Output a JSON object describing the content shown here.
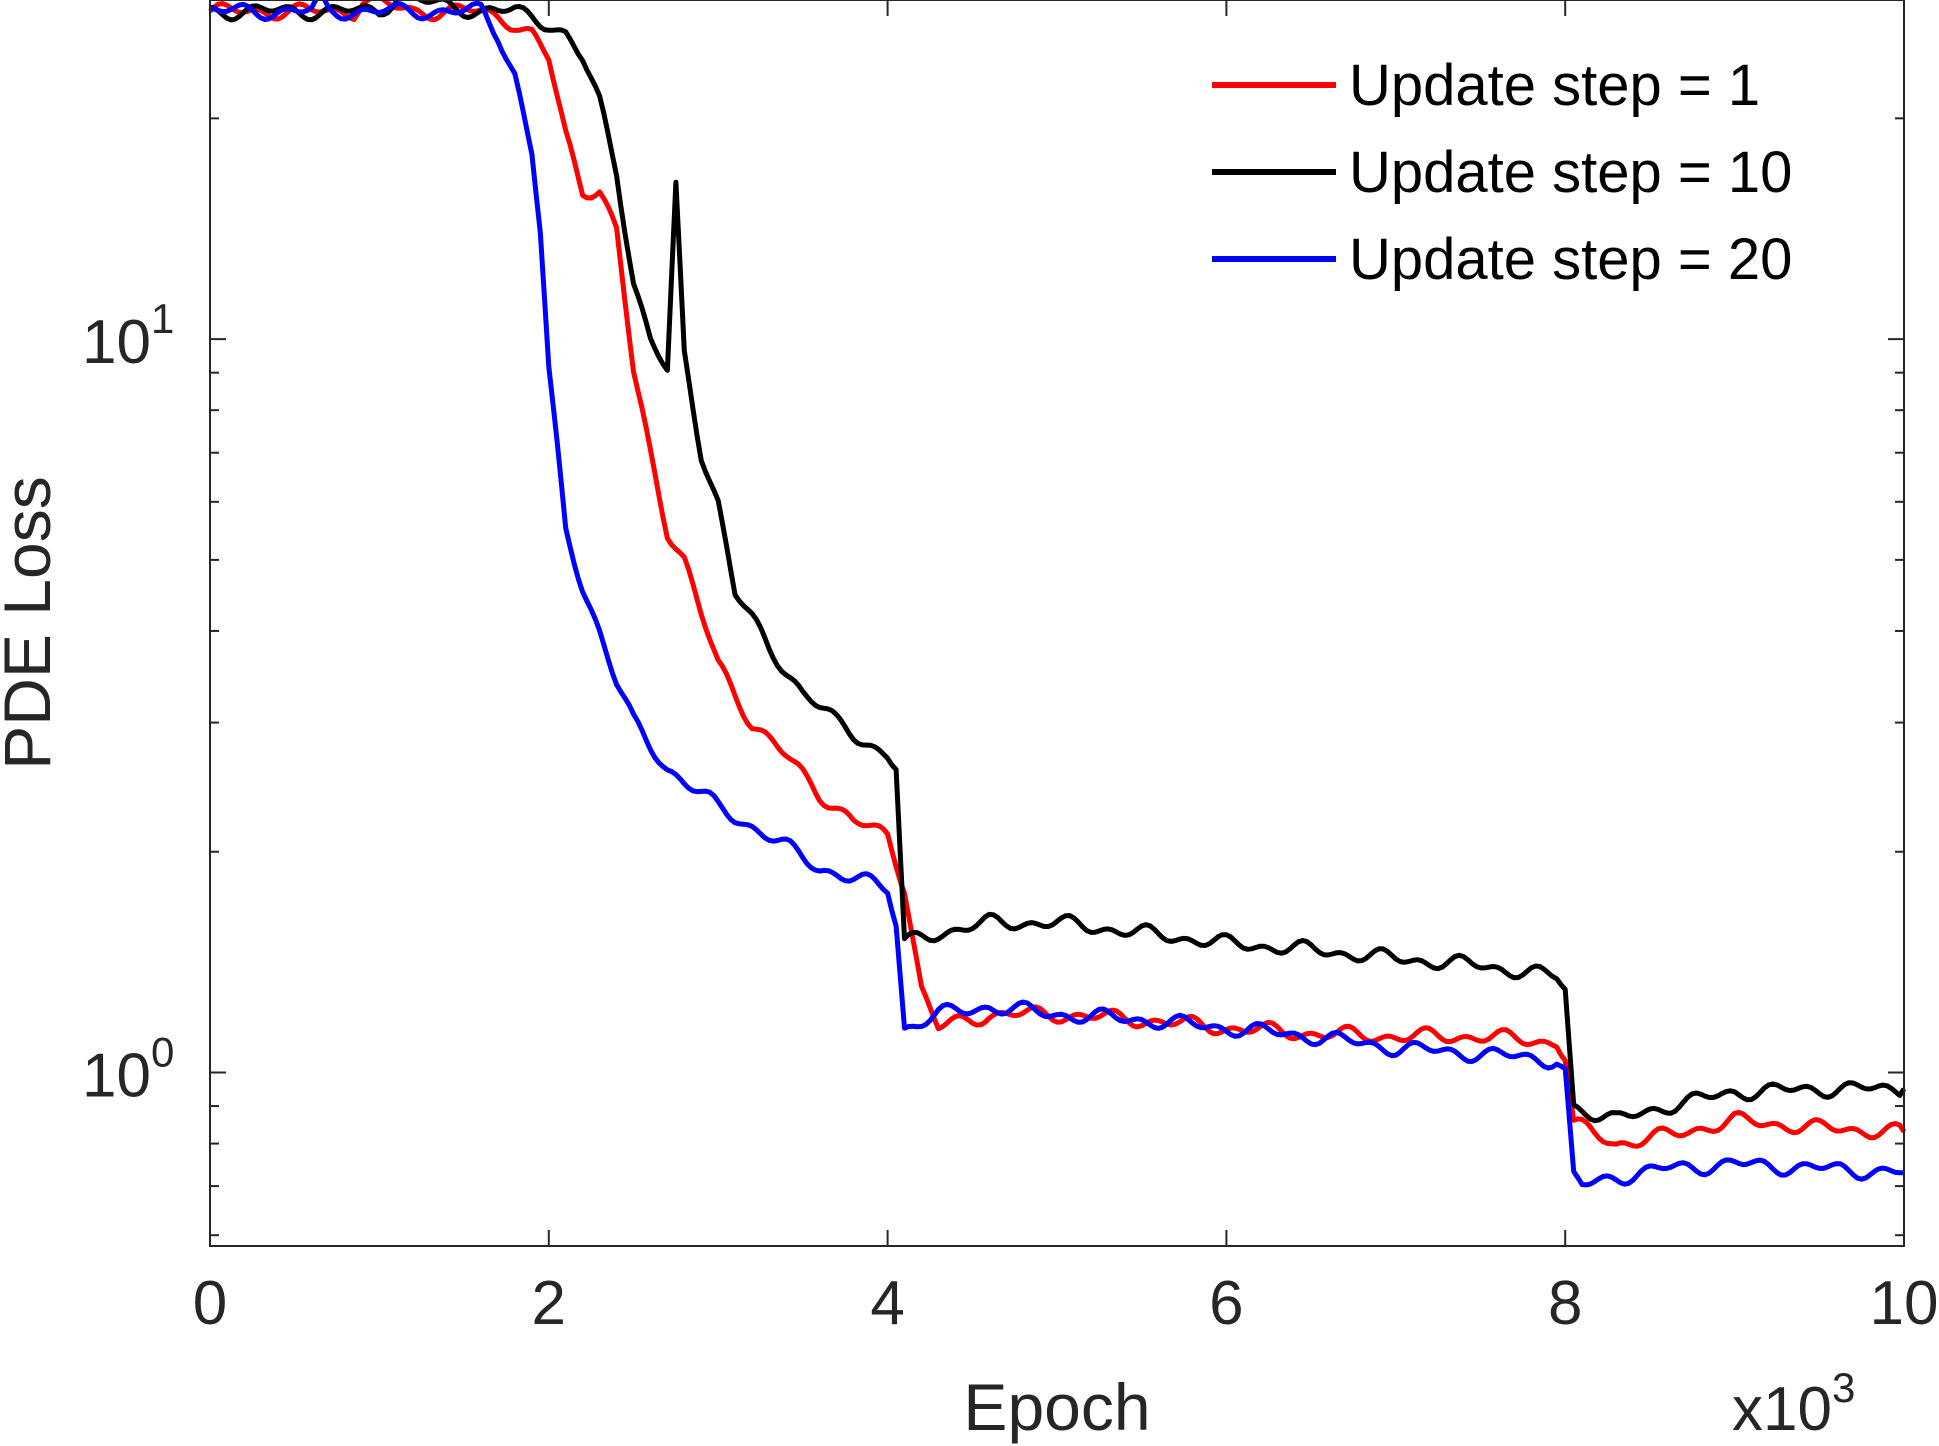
{
  "chart_data": {
    "type": "line",
    "xlabel": "Epoch",
    "ylabel": "PDE Loss",
    "x_multiplier_label": "x10",
    "x_multiplier_exp": "3",
    "xlim": [
      0,
      10000
    ],
    "ylim": [
      0.58,
      29
    ],
    "yscale": "log",
    "x_ticks": [
      0,
      2000,
      4000,
      6000,
      8000,
      10000
    ],
    "x_tick_labels": [
      "0",
      "2",
      "4",
      "6",
      "8",
      "10"
    ],
    "y_ticks": [
      1,
      10
    ],
    "y_tick_labels": [
      {
        "base": "10",
        "exp": "0"
      },
      {
        "base": "10",
        "exp": "1"
      }
    ],
    "grid": false,
    "legend": {
      "position": "top-right",
      "entries": [
        "Update step = 1",
        "Update step = 10",
        "Update step = 20"
      ]
    },
    "series": [
      {
        "name": "Update step = 1",
        "color": "#ff0000",
        "points": [
          [
            0,
            28
          ],
          [
            850,
            28
          ],
          [
            900,
            29
          ],
          [
            1200,
            28
          ],
          [
            1600,
            28
          ],
          [
            1700,
            27.5
          ],
          [
            1800,
            27
          ],
          [
            1900,
            26
          ],
          [
            2000,
            24
          ],
          [
            2100,
            19
          ],
          [
            2200,
            16
          ],
          [
            2300,
            16
          ],
          [
            2400,
            14
          ],
          [
            2500,
            9
          ],
          [
            2600,
            7
          ],
          [
            2700,
            5.5
          ],
          [
            2800,
            5
          ],
          [
            2900,
            4.2
          ],
          [
            3000,
            3.6
          ],
          [
            3200,
            3.0
          ],
          [
            3400,
            2.7
          ],
          [
            3600,
            2.4
          ],
          [
            3800,
            2.2
          ],
          [
            4000,
            2.1
          ],
          [
            4100,
            1.8
          ],
          [
            4200,
            1.3
          ],
          [
            4300,
            1.15
          ],
          [
            4600,
            1.2
          ],
          [
            5000,
            1.2
          ],
          [
            5500,
            1.18
          ],
          [
            6000,
            1.15
          ],
          [
            6500,
            1.13
          ],
          [
            7000,
            1.12
          ],
          [
            7500,
            1.12
          ],
          [
            7950,
            1.1
          ],
          [
            8000,
            1.05
          ],
          [
            8050,
            0.85
          ],
          [
            8300,
            0.8
          ],
          [
            8600,
            0.82
          ],
          [
            9000,
            0.86
          ],
          [
            9500,
            0.84
          ],
          [
            10000,
            0.83
          ]
        ]
      },
      {
        "name": "Update step = 10",
        "color": "#000000",
        "points": [
          [
            0,
            28
          ],
          [
            1000,
            28
          ],
          [
            1150,
            30
          ],
          [
            1200,
            29
          ],
          [
            1600,
            28
          ],
          [
            1800,
            28
          ],
          [
            2000,
            27
          ],
          [
            2100,
            26
          ],
          [
            2200,
            24
          ],
          [
            2300,
            21
          ],
          [
            2400,
            17
          ],
          [
            2500,
            12
          ],
          [
            2600,
            10
          ],
          [
            2700,
            9
          ],
          [
            2750,
            16
          ],
          [
            2800,
            9.5
          ],
          [
            2900,
            7
          ],
          [
            3000,
            6
          ],
          [
            3100,
            4.5
          ],
          [
            3300,
            3.8
          ],
          [
            3500,
            3.3
          ],
          [
            3700,
            3.0
          ],
          [
            3900,
            2.8
          ],
          [
            4000,
            2.7
          ],
          [
            4050,
            2.6
          ],
          [
            4100,
            1.5
          ],
          [
            4300,
            1.55
          ],
          [
            4600,
            1.6
          ],
          [
            5000,
            1.6
          ],
          [
            5500,
            1.55
          ],
          [
            6000,
            1.5
          ],
          [
            6500,
            1.47
          ],
          [
            7000,
            1.43
          ],
          [
            7500,
            1.4
          ],
          [
            7950,
            1.35
          ],
          [
            8000,
            1.3
          ],
          [
            8050,
            0.9
          ],
          [
            8300,
            0.86
          ],
          [
            8600,
            0.9
          ],
          [
            9000,
            0.94
          ],
          [
            9500,
            0.95
          ],
          [
            10000,
            0.95
          ]
        ]
      },
      {
        "name": "Update step = 20",
        "color": "#0000ff",
        "points": [
          [
            0,
            28
          ],
          [
            600,
            28
          ],
          [
            650,
            29
          ],
          [
            700,
            28
          ],
          [
            1600,
            28
          ],
          [
            1700,
            26
          ],
          [
            1800,
            23
          ],
          [
            1900,
            18
          ],
          [
            1950,
            14
          ],
          [
            2000,
            9
          ],
          [
            2100,
            5.5
          ],
          [
            2200,
            4.6
          ],
          [
            2300,
            4.0
          ],
          [
            2400,
            3.4
          ],
          [
            2500,
            3.0
          ],
          [
            2700,
            2.6
          ],
          [
            3000,
            2.3
          ],
          [
            3300,
            2.1
          ],
          [
            3600,
            1.9
          ],
          [
            4000,
            1.78
          ],
          [
            4050,
            1.6
          ],
          [
            4100,
            1.15
          ],
          [
            4300,
            1.2
          ],
          [
            4600,
            1.23
          ],
          [
            5000,
            1.2
          ],
          [
            5500,
            1.18
          ],
          [
            6000,
            1.15
          ],
          [
            6500,
            1.12
          ],
          [
            7000,
            1.08
          ],
          [
            7500,
            1.06
          ],
          [
            7950,
            1.04
          ],
          [
            8000,
            1.0
          ],
          [
            8050,
            0.72
          ],
          [
            8100,
            0.7
          ],
          [
            8300,
            0.72
          ],
          [
            8600,
            0.74
          ],
          [
            9000,
            0.75
          ],
          [
            9500,
            0.74
          ],
          [
            10000,
            0.73
          ]
        ]
      }
    ]
  }
}
